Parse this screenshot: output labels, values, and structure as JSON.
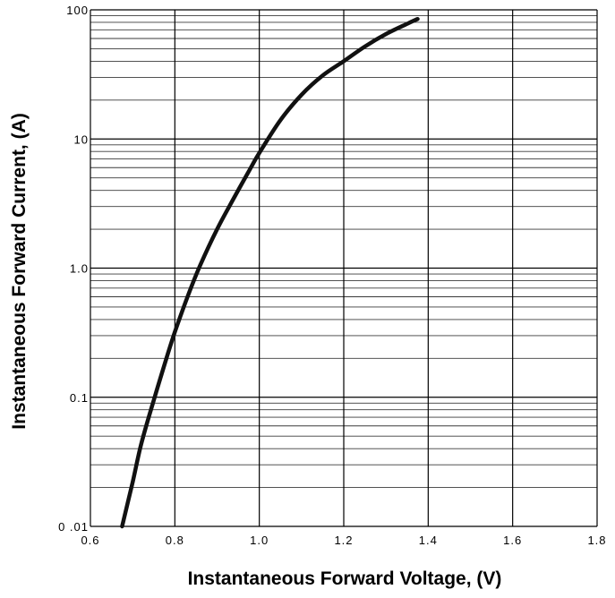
{
  "chart_data": {
    "type": "line",
    "title": "",
    "xlabel": "Instantaneous Forward Voltage, (V)",
    "ylabel": "Instantaneous Forward Current, (A)",
    "xlim": [
      0.6,
      1.8
    ],
    "ylim": [
      0.01,
      100
    ],
    "y_scale": "log",
    "grid": true,
    "x_ticks": [
      "0.6",
      "0.8",
      "1.0",
      "1.2",
      "1.4",
      "1.6",
      "1.8"
    ],
    "y_ticks": [
      "0 .01",
      "0.1",
      "1.0",
      "10",
      "100"
    ],
    "series": [
      {
        "x": [
          0.675,
          0.7,
          0.72,
          0.75,
          0.78,
          0.8,
          0.83,
          0.86,
          0.9,
          0.94,
          0.98,
          1.0,
          1.05,
          1.1,
          1.15,
          1.2,
          1.25,
          1.3,
          1.35,
          1.375
        ],
        "y": [
          0.01,
          0.022,
          0.043,
          0.095,
          0.2,
          0.32,
          0.6,
          1.05,
          2.0,
          3.5,
          6.0,
          7.8,
          14,
          22,
          31,
          40,
          52,
          65,
          78,
          85
        ]
      }
    ]
  }
}
